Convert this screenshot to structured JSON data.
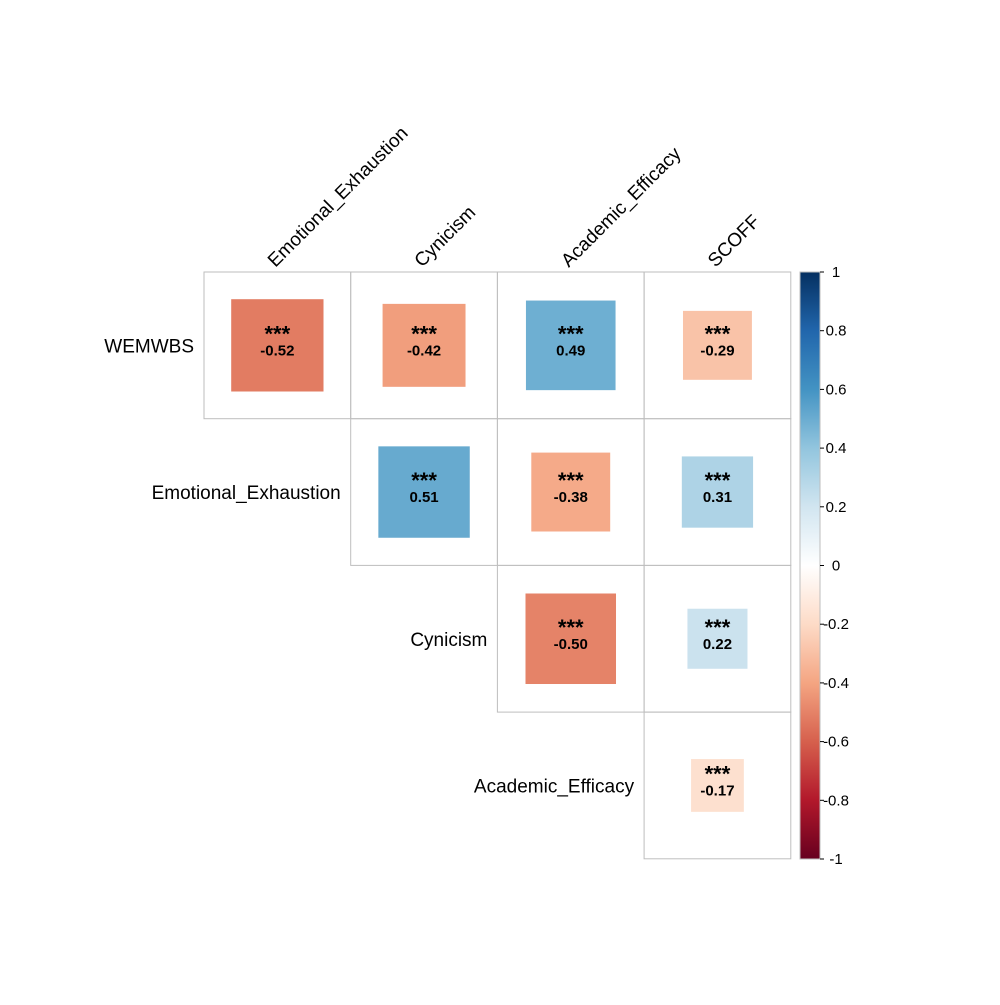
{
  "chart_data": {
    "type": "heatmap",
    "subtype": "correlation-matrix-upper",
    "title": "",
    "row_labels": [
      "WEMWBS",
      "Emotional_Exhaustion",
      "Cynicism",
      "Academic_Efficacy"
    ],
    "col_labels": [
      "Emotional_Exhaustion",
      "Cynicism",
      "Academic_Efficacy",
      "SCOFF"
    ],
    "cells": [
      {
        "row": 0,
        "col": 0,
        "value": -0.52,
        "label": "-0.52",
        "sig": "***"
      },
      {
        "row": 0,
        "col": 1,
        "value": -0.42,
        "label": "-0.42",
        "sig": "***"
      },
      {
        "row": 0,
        "col": 2,
        "value": 0.49,
        "label": "0.49",
        "sig": "***"
      },
      {
        "row": 0,
        "col": 3,
        "value": -0.29,
        "label": "-0.29",
        "sig": "***"
      },
      {
        "row": 1,
        "col": 1,
        "value": 0.51,
        "label": "0.51",
        "sig": "***"
      },
      {
        "row": 1,
        "col": 2,
        "value": -0.38,
        "label": "-0.38",
        "sig": "***"
      },
      {
        "row": 1,
        "col": 3,
        "value": 0.31,
        "label": "0.31",
        "sig": "***"
      },
      {
        "row": 2,
        "col": 2,
        "value": -0.5,
        "label": "-0.50",
        "sig": "***"
      },
      {
        "row": 2,
        "col": 3,
        "value": 0.22,
        "label": "0.22",
        "sig": "***"
      },
      {
        "row": 3,
        "col": 3,
        "value": -0.17,
        "label": "-0.17",
        "sig": "***"
      }
    ],
    "colorbar": {
      "range": [
        -1,
        1
      ],
      "ticks": [
        1,
        0.8,
        0.6,
        0.4,
        0.2,
        0,
        -0.2,
        -0.4,
        -0.6,
        -0.8,
        -1
      ],
      "tick_labels": [
        "1",
        "0.8",
        "0.6",
        "0.4",
        "0.2",
        "0",
        "-0.2",
        "-0.4",
        "-0.6",
        "-0.8",
        "-1"
      ],
      "colors_high_to_low": [
        "#053061",
        "#2166AC",
        "#4393C3",
        "#92C5DE",
        "#D1E5F0",
        "#FFFFFF",
        "#FDDBC7",
        "#F4A582",
        "#D6604D",
        "#B2182B",
        "#67001F"
      ]
    },
    "grid": true,
    "legend_placement": "right"
  }
}
